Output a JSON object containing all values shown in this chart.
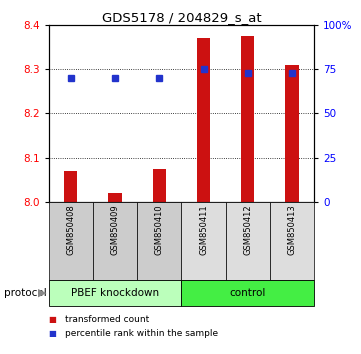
{
  "title": "GDS5178 / 204829_s_at",
  "samples": [
    "GSM850408",
    "GSM850409",
    "GSM850410",
    "GSM850411",
    "GSM850412",
    "GSM850413"
  ],
  "red_values": [
    8.07,
    8.02,
    8.075,
    8.37,
    8.375,
    8.31
  ],
  "blue_values": [
    70,
    70,
    70,
    75,
    73,
    73
  ],
  "ylim_left": [
    8.0,
    8.4
  ],
  "ylim_right": [
    0,
    100
  ],
  "yticks_left": [
    8.0,
    8.1,
    8.2,
    8.3,
    8.4
  ],
  "yticks_right": [
    0,
    25,
    50,
    75,
    100
  ],
  "ytick_labels_right": [
    "0",
    "25",
    "50",
    "75",
    "100%"
  ],
  "grid_lines": [
    8.1,
    8.2,
    8.3
  ],
  "groups": [
    {
      "label": "PBEF knockdown",
      "indices": [
        0,
        1,
        2
      ],
      "color": "#bbffbb"
    },
    {
      "label": "control",
      "indices": [
        3,
        4,
        5
      ],
      "color": "#44ee44"
    }
  ],
  "bar_color": "#cc1111",
  "dot_color": "#2233cc",
  "legend_red_label": "transformed count",
  "legend_blue_label": "percentile rank within the sample",
  "protocol_label": "protocol",
  "ybase": 8.0,
  "background_color": "#ffffff",
  "sample_bg_colors": [
    "#cccccc",
    "#cccccc",
    "#cccccc",
    "#dddddd",
    "#dddddd",
    "#dddddd"
  ],
  "bar_width": 0.3
}
